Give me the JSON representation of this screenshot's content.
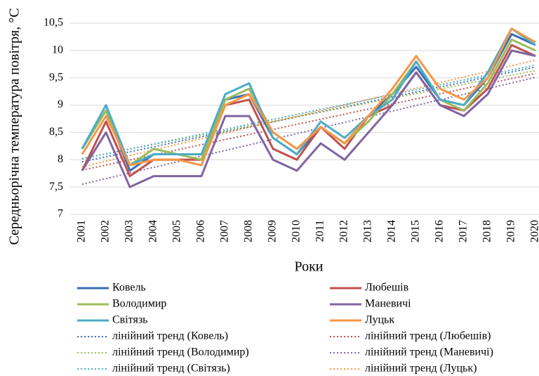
{
  "chart_data": {
    "type": "line",
    "y_label": "Середньорічна температура повітря, °С",
    "x_label": "Роки",
    "categories": [
      "2001",
      "2002",
      "2003",
      "2004",
      "2005",
      "2006",
      "2007",
      "2008",
      "2009",
      "2010",
      "2011",
      "2012",
      "2013",
      "2014",
      "2015",
      "2016",
      "2017",
      "2018",
      "2019",
      "2020"
    ],
    "ylim": [
      7,
      10.5
    ],
    "yticks": [
      7,
      {
        "value": 7.5,
        "label": "7,5"
      },
      8,
      {
        "value": 8.5,
        "label": "8,5"
      },
      9,
      {
        "value": 9.5,
        "label": "9,5"
      },
      10,
      {
        "value": 10.5,
        "label": "10,5"
      }
    ],
    "grid": true,
    "series": [
      {
        "name": "Ковель",
        "color": "#3a6db5",
        "values": [
          8.2,
          8.9,
          7.8,
          8.1,
          8.1,
          8.1,
          9.1,
          9.2,
          8.4,
          8.1,
          8.6,
          8.3,
          8.8,
          9.2,
          9.7,
          9.1,
          9.0,
          9.5,
          10.3,
          10.1
        ]
      },
      {
        "name": "Любешів",
        "color": "#c0504d",
        "values": [
          7.8,
          8.7,
          7.7,
          8.0,
          8.0,
          8.0,
          9.0,
          9.1,
          8.2,
          8.0,
          8.6,
          8.2,
          8.8,
          9.0,
          9.6,
          9.0,
          8.9,
          9.3,
          10.1,
          9.9
        ]
      },
      {
        "name": "Володимир",
        "color": "#9bbb59",
        "values": [
          8.2,
          8.9,
          7.9,
          8.2,
          8.1,
          8.0,
          9.1,
          9.3,
          8.5,
          8.2,
          8.6,
          8.3,
          8.7,
          9.2,
          9.8,
          9.1,
          8.9,
          9.4,
          10.2,
          10.0
        ]
      },
      {
        "name": "Маневичі",
        "color": "#8064a2",
        "values": [
          7.8,
          8.5,
          7.5,
          7.7,
          7.7,
          7.7,
          8.8,
          8.8,
          8.0,
          7.8,
          8.3,
          8.0,
          8.5,
          9.0,
          9.6,
          9.0,
          8.8,
          9.2,
          10.0,
          9.9
        ]
      },
      {
        "name": "Світязь",
        "color": "#4bacc6",
        "values": [
          8.2,
          9.0,
          7.9,
          8.1,
          8.1,
          8.1,
          9.2,
          9.4,
          8.4,
          8.1,
          8.7,
          8.4,
          8.8,
          9.1,
          9.8,
          9.1,
          9.0,
          9.6,
          10.4,
          10.1
        ]
      },
      {
        "name": "Луцьк",
        "color": "#f79646",
        "values": [
          8.1,
          8.8,
          7.9,
          8.0,
          8.0,
          7.9,
          9.0,
          9.2,
          8.5,
          8.2,
          8.6,
          8.3,
          8.8,
          9.3,
          9.9,
          9.3,
          9.1,
          9.5,
          10.4,
          10.15
        ]
      }
    ],
    "trendlines": [
      {
        "name": "лінійний тренд (Ковель)"
      },
      {
        "name": "лінійний тренд (Любешів)"
      },
      {
        "name": "лінійний тренд (Володимир)"
      },
      {
        "name": "лінійний тренд (Маневичі)"
      },
      {
        "name": "лінійний тренд (Світязь)"
      },
      {
        "name": "лінійний тренд (Луцьк)"
      }
    ]
  }
}
